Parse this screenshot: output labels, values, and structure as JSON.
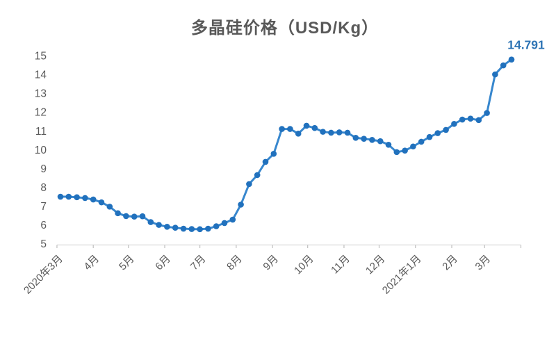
{
  "title": "多晶硅价格（USD/Kg）",
  "colors": {
    "line": "#3787CE",
    "marker": "#2171BD",
    "last_label": "#2E74B5",
    "title_text": "#595959",
    "axis_text": "#595959",
    "axis_line": "#D9D9D9",
    "tick_mark": "#BFBFBF",
    "background": "#FFFFFF"
  },
  "chart_data": {
    "type": "line",
    "title": "多晶硅价格（USD/Kg）",
    "xlabel": "",
    "ylabel": "",
    "ylim": [
      5,
      15
    ],
    "y_ticks": [
      5,
      6,
      7,
      8,
      9,
      10,
      11,
      12,
      13,
      14,
      15
    ],
    "grid": false,
    "legend": "none",
    "series_name": "多晶硅价格",
    "x_months": [
      {
        "label": "2020年3月",
        "day_offset": 0
      },
      {
        "label": "4月",
        "day_offset": 31
      },
      {
        "label": "5月",
        "day_offset": 61
      },
      {
        "label": "6月",
        "day_offset": 92
      },
      {
        "label": "7月",
        "day_offset": 122
      },
      {
        "label": "8月",
        "day_offset": 153
      },
      {
        "label": "9月",
        "day_offset": 184
      },
      {
        "label": "10月",
        "day_offset": 214
      },
      {
        "label": "11月",
        "day_offset": 245
      },
      {
        "label": "12月",
        "day_offset": 275
      },
      {
        "label": "2021年1月",
        "day_offset": 306
      },
      {
        "label": "2月",
        "day_offset": 337
      },
      {
        "label": "3月",
        "day_offset": 365
      }
    ],
    "axis_end_day_offset": 396,
    "points_weekly": {
      "first_day_offset": 3,
      "interval_days": 7
    },
    "values": [
      7.5,
      7.5,
      7.47,
      7.43,
      7.35,
      7.2,
      6.97,
      6.62,
      6.47,
      6.44,
      6.46,
      6.15,
      6.0,
      5.9,
      5.85,
      5.8,
      5.78,
      5.77,
      5.8,
      5.93,
      6.1,
      6.28,
      7.08,
      8.17,
      8.65,
      9.35,
      9.78,
      11.1,
      11.1,
      10.85,
      11.27,
      11.15,
      10.95,
      10.9,
      10.92,
      10.9,
      10.63,
      10.58,
      10.52,
      10.45,
      10.26,
      9.87,
      9.95,
      10.17,
      10.42,
      10.67,
      10.88,
      11.05,
      11.37,
      11.6,
      11.65,
      11.57,
      11.95,
      14.0,
      14.48,
      14.791
    ],
    "last_value_label": "14.791"
  }
}
